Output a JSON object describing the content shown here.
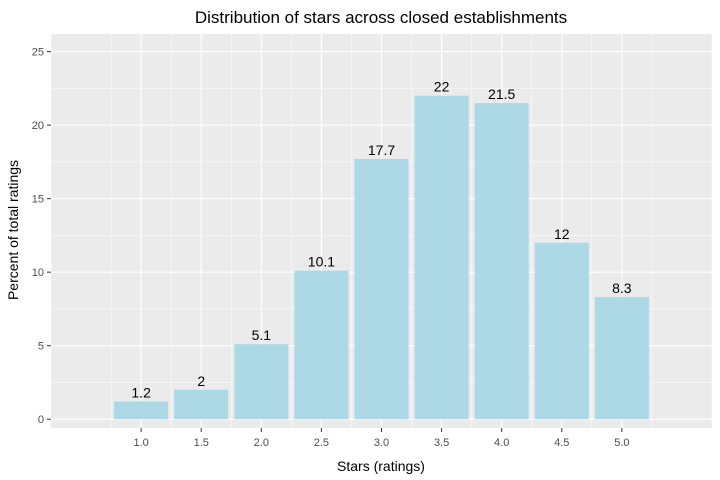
{
  "chart_data": {
    "type": "bar",
    "title": "Distribution of stars across closed establishments",
    "xlabel": "Stars (ratings)",
    "ylabel": "Percent of total ratings",
    "categories": [
      "1.0",
      "1.5",
      "2.0",
      "2.5",
      "3.0",
      "3.5",
      "4.0",
      "4.5",
      "5.0"
    ],
    "values": [
      1.2,
      2,
      5.1,
      10.1,
      17.7,
      22,
      21.5,
      12,
      8.3
    ],
    "data_labels": [
      "1.2",
      "2",
      "5.1",
      "10.1",
      "17.7",
      "22",
      "21.5",
      "12",
      "8.3"
    ],
    "yticks": [
      0,
      5,
      10,
      15,
      20,
      25
    ],
    "ylim": [
      -0.6,
      26.2
    ],
    "grid": true,
    "bar_color": "#add8e6",
    "panel_background": "#ebebeb",
    "gridline_color": "#ffffff"
  }
}
